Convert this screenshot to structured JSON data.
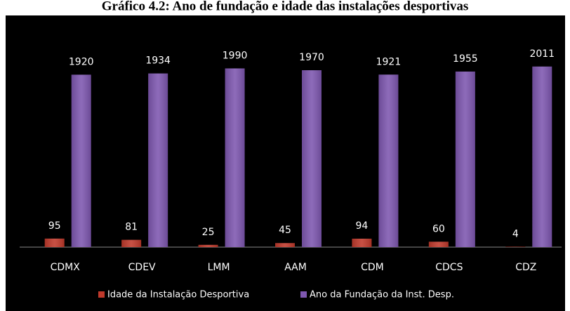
{
  "chart_data": {
    "type": "bar",
    "title": "Gráfico 4.2: Ano de fundação e idade das instalações desportivas",
    "categories": [
      "CDMX",
      "CDEV",
      "LMM",
      "AAM",
      "CDM",
      "CDCS",
      "CDZ"
    ],
    "series": [
      {
        "name": "Idade da Instalação Desportiva",
        "color": "#c0392b",
        "values": [
          95,
          81,
          25,
          45,
          94,
          60,
          4
        ]
      },
      {
        "name": "Ano da Fundação da Inst. Desp.",
        "color": "#7e57b0",
        "values": [
          1920,
          1934,
          1990,
          1970,
          1921,
          1955,
          2011
        ]
      }
    ],
    "ylim": [
      0,
      2400
    ],
    "legend": "bottom"
  }
}
